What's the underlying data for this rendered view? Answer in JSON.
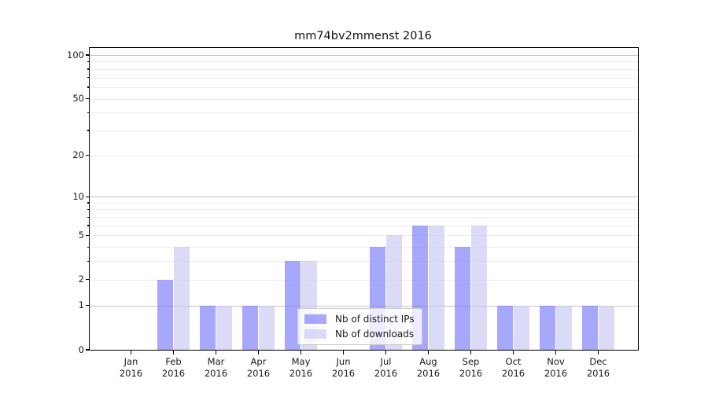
{
  "title": "mm74bv2mmenst 2016",
  "chart_data": {
    "type": "bar",
    "title": "mm74bv2mmenst 2016",
    "categories": [
      "Jan 2016",
      "Feb 2016",
      "Mar 2016",
      "Apr 2016",
      "May 2016",
      "Jun 2016",
      "Jul 2016",
      "Aug 2016",
      "Sep 2016",
      "Oct 2016",
      "Nov 2016",
      "Dec 2016"
    ],
    "x_tick_line1": [
      "Jan",
      "Feb",
      "Mar",
      "Apr",
      "May",
      "Jun",
      "Jul",
      "Aug",
      "Sep",
      "Oct",
      "Nov",
      "Dec"
    ],
    "x_tick_line2": [
      "2016",
      "2016",
      "2016",
      "2016",
      "2016",
      "2016",
      "2016",
      "2016",
      "2016",
      "2016",
      "2016",
      "2016"
    ],
    "series": [
      {
        "name": "Nb of distinct IPs",
        "color": "rgba(120,120,250,0.65)",
        "values": [
          0,
          2,
          1,
          1,
          3,
          0,
          4,
          6,
          4,
          1,
          1,
          1
        ]
      },
      {
        "name": "Nb of downloads",
        "color": "rgba(200,200,245,0.65)",
        "values": [
          0,
          4,
          1,
          1,
          3,
          0,
          5,
          6,
          6,
          1,
          1,
          1
        ]
      }
    ],
    "xlabel": "",
    "ylabel": "",
    "yscale": "log1p",
    "ylim": [
      0,
      100
    ],
    "ytick_values": [
      0,
      1,
      2,
      5,
      10,
      20,
      50,
      100
    ],
    "ytick_labels": [
      "0",
      "1",
      "2",
      "5",
      "10",
      "20",
      "50",
      "100"
    ],
    "major_grid_values": [
      1,
      10,
      100
    ],
    "minor_grid_values": [
      2,
      3,
      4,
      5,
      6,
      7,
      8,
      9,
      20,
      30,
      40,
      50,
      60,
      70,
      80,
      90
    ],
    "grid": true,
    "legend": {
      "position": "inside-bottom-center",
      "entries": [
        "Nb of distinct IPs",
        "Nb of downloads"
      ]
    }
  },
  "colors": {
    "bar_dark": "rgba(120,120,250,0.65)",
    "bar_light": "rgba(200,200,245,0.65)",
    "grid_major": "#c3c3c3",
    "grid_minor": "#ececec",
    "axis": "#000000"
  }
}
